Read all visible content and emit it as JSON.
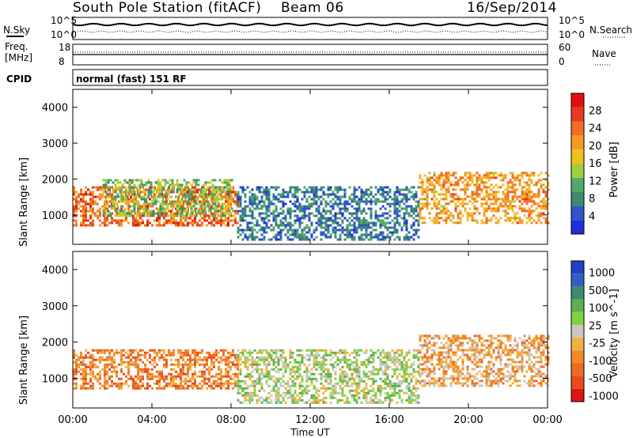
{
  "header": {
    "station": "South Pole Station (fitACF)",
    "beam": "Beam 06",
    "date": "16/Sep/2014"
  },
  "top_strip": {
    "nsky_label": "N.Sky",
    "nsearch_label": "N.Search",
    "freq_label_1": "Freq.",
    "freq_label_2": "[MHz]",
    "nave_label": "Nave",
    "cpid_label": "CPID",
    "mode_text": "normal (fast) 151 RF",
    "noise_ticks_left": [
      "10^5",
      "10^0"
    ],
    "noise_ticks_right": [
      "10^5",
      "10^0"
    ],
    "freq_ticks": [
      "18",
      "8"
    ],
    "nave_ticks": [
      "60",
      "0"
    ]
  },
  "colors": {
    "power_scale": [
      "#1f2fd8",
      "#2f55c8",
      "#3d8a6e",
      "#52a86a",
      "#9fcf3a",
      "#f0c020",
      "#f39a22",
      "#f06c24",
      "#e83a1c",
      "#e01010"
    ],
    "velocity_scale": [
      "#1f3fc8",
      "#3060c0",
      "#3d8a6e",
      "#5dae55",
      "#7fd040",
      "#c8c8c0",
      "#f2b040",
      "#f08a2a",
      "#ee6a26",
      "#e84a1e",
      "#e01414"
    ]
  },
  "chart_data": [
    {
      "type": "heatmap",
      "title": "Power",
      "xlabel": "Time UT",
      "ylabel": "Slant Range [km]",
      "xlim": [
        "00:00",
        "24:00"
      ],
      "ylim": [
        180,
        4500
      ],
      "x_ticks": [
        "00:00",
        "04:00",
        "08:00",
        "12:00",
        "16:00",
        "20:00",
        "00:00"
      ],
      "y_ticks": [
        1000,
        2000,
        3000,
        4000
      ],
      "colorbar": {
        "label": "Power [dB]",
        "ticks": [
          4,
          8,
          12,
          16,
          20,
          24,
          28
        ]
      },
      "regions": [
        {
          "t_start": 0.0,
          "t_end": 8.3,
          "range_low": 700,
          "range_high": 1800,
          "level_dB": 24
        },
        {
          "t_start": 1.5,
          "t_end": 8.0,
          "range_low": 1000,
          "range_high": 2000,
          "level_dB": 12
        },
        {
          "t_start": 8.3,
          "t_end": 17.5,
          "range_low": 300,
          "range_high": 1800,
          "level_dB": 6
        },
        {
          "t_start": 17.5,
          "t_end": 24.0,
          "range_low": 800,
          "range_high": 2200,
          "level_dB": 20
        }
      ]
    },
    {
      "type": "heatmap",
      "title": "Velocity",
      "xlabel": "Time UT",
      "ylabel": "Slant Range [km]",
      "xlim": [
        "00:00",
        "24:00"
      ],
      "ylim": [
        180,
        4500
      ],
      "x_ticks": [
        "00:00",
        "04:00",
        "08:00",
        "12:00",
        "16:00",
        "20:00",
        "00:00"
      ],
      "y_ticks": [
        1000,
        2000,
        3000,
        4000
      ],
      "colorbar": {
        "label": "Velocity [m s^-1]",
        "ticks": [
          1000,
          500,
          100,
          25,
          -25,
          -100,
          -500,
          -1000
        ]
      },
      "regions": [
        {
          "t_start": 0.0,
          "t_end": 8.3,
          "range_low": 700,
          "range_high": 1800,
          "velocity": -500
        },
        {
          "t_start": 8.3,
          "t_end": 17.5,
          "range_low": 300,
          "range_high": 1800,
          "velocity": 100
        },
        {
          "t_start": 17.5,
          "t_end": 24.0,
          "range_low": 800,
          "range_high": 2200,
          "velocity": -300
        }
      ]
    }
  ]
}
